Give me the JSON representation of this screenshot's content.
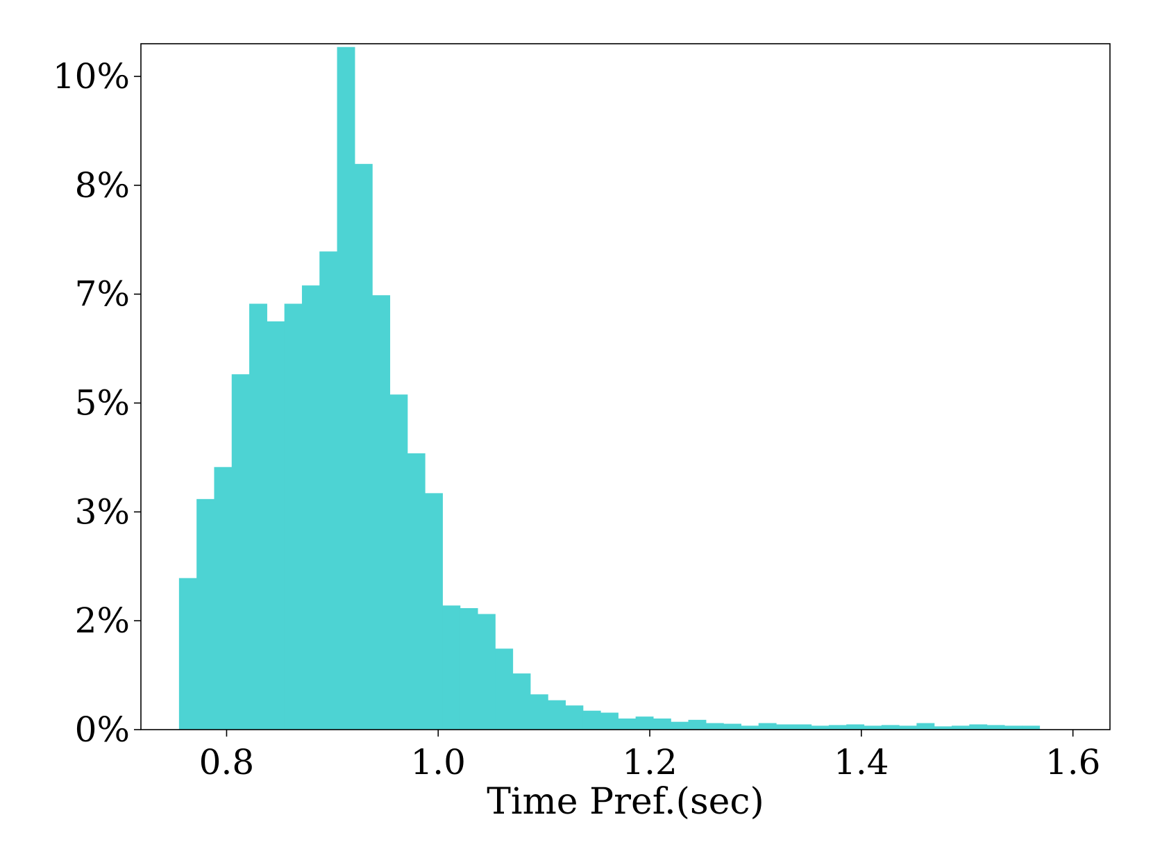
{
  "chart_data": {
    "type": "bar",
    "title": "",
    "xlabel": "Time Pref.(sec)",
    "ylabel": "",
    "xlim": [
      0.719,
      1.635
    ],
    "ylim": [
      0,
      10.5
    ],
    "x_ticks": [
      0.8,
      1.0,
      1.2,
      1.4,
      1.6
    ],
    "x_tick_labels": [
      "0.8",
      "1.0",
      "1.2",
      "1.4",
      "1.6"
    ],
    "y_ticks": [
      0,
      1.667,
      3.333,
      5.0,
      6.667,
      8.333,
      10.0
    ],
    "y_tick_labels": [
      "0%",
      "2%",
      "3%",
      "5%",
      "7%",
      "8%",
      "10%"
    ],
    "bar_color": "#4dd3d3",
    "bin_width": 0.0166,
    "bin_starts": [
      0.755,
      0.7716,
      0.7882,
      0.8048,
      0.8214,
      0.838,
      0.8546,
      0.8712,
      0.8878,
      0.9044,
      0.921,
      0.9376,
      0.9542,
      0.9708,
      0.9874,
      1.004,
      1.0206,
      1.0372,
      1.0538,
      1.0704,
      1.087,
      1.1036,
      1.1202,
      1.1368,
      1.1534,
      1.17,
      1.1866,
      1.2032,
      1.2198,
      1.2364,
      1.253,
      1.2696,
      1.2862,
      1.3028,
      1.3194,
      1.336,
      1.3526,
      1.3692,
      1.3858,
      1.4024,
      1.419,
      1.4356,
      1.4522,
      1.4688,
      1.4854,
      1.502,
      1.5186,
      1.5352,
      1.5518
    ],
    "values": [
      2.32,
      3.53,
      4.02,
      5.44,
      6.52,
      6.25,
      6.52,
      6.8,
      7.32,
      10.45,
      8.66,
      6.65,
      5.13,
      4.23,
      3.62,
      1.9,
      1.86,
      1.77,
      1.24,
      0.86,
      0.54,
      0.45,
      0.37,
      0.29,
      0.26,
      0.17,
      0.2,
      0.17,
      0.12,
      0.15,
      0.1,
      0.09,
      0.06,
      0.1,
      0.08,
      0.08,
      0.06,
      0.07,
      0.08,
      0.06,
      0.07,
      0.06,
      0.1,
      0.05,
      0.06,
      0.08,
      0.07,
      0.06,
      0.06
    ]
  }
}
